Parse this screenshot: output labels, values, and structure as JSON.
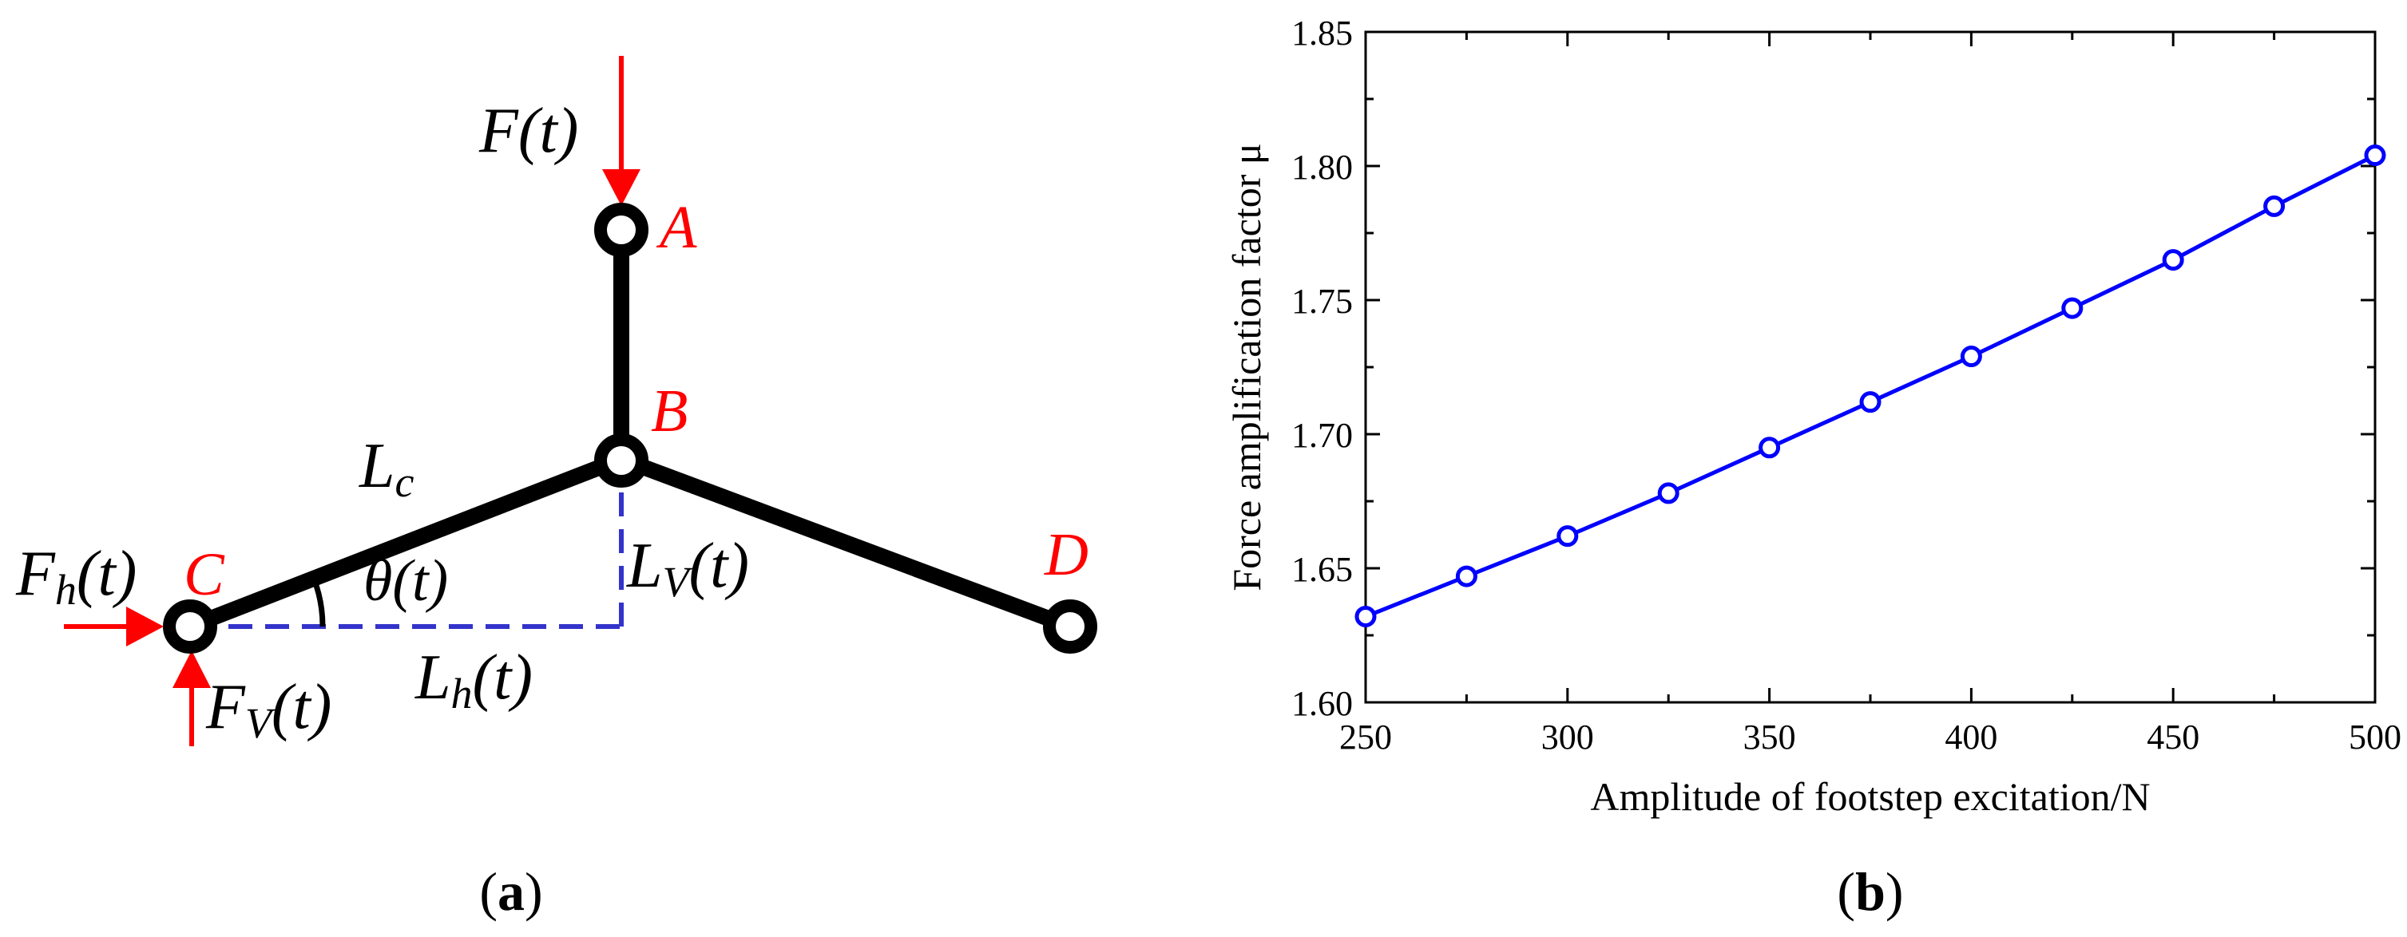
{
  "panel_a": {
    "caption": "a",
    "nodes": {
      "A": "A",
      "B": "B",
      "C": "C",
      "D": "D"
    },
    "labels": {
      "force": "F(t)",
      "Lc_main": "L",
      "Lc_sub": "c",
      "Fh_main": "F",
      "Fh_sub": "h",
      "Fh_tail": "(t)",
      "theta": "θ(t)",
      "Lv_main": "L",
      "Lv_sub": "V",
      "Lv_tail": "(t)",
      "Fv_main": "F",
      "Fv_sub": "V",
      "Fv_tail": "(t)",
      "Lh_main": "L",
      "Lh_sub": "h",
      "Lh_tail": "(t)"
    },
    "colors": {
      "member": "#000000",
      "force_arrow": "#ff0000",
      "dimension": "#3333cc",
      "node_label": "#ff0000"
    }
  },
  "panel_b": {
    "caption": "b",
    "chart_data": {
      "type": "line",
      "x": [
        250,
        275,
        300,
        325,
        350,
        375,
        400,
        425,
        450,
        475,
        500
      ],
      "series": [
        {
          "values": [
            1.632,
            1.647,
            1.662,
            1.678,
            1.695,
            1.712,
            1.729,
            1.747,
            1.765,
            1.785,
            1.804
          ],
          "color": "#0000ff",
          "marker": "open-circle"
        }
      ],
      "xlabel": "Amplitude of footstep excitation/N",
      "ylabel": "Force amplification factor μ",
      "xlim": [
        250,
        500
      ],
      "ylim": [
        1.6,
        1.85
      ],
      "xticks": [
        "250",
        "300",
        "350",
        "400",
        "450",
        "500"
      ],
      "yticks": [
        "1.60",
        "1.65",
        "1.70",
        "1.75",
        "1.80",
        "1.85"
      ],
      "grid": false
    }
  }
}
